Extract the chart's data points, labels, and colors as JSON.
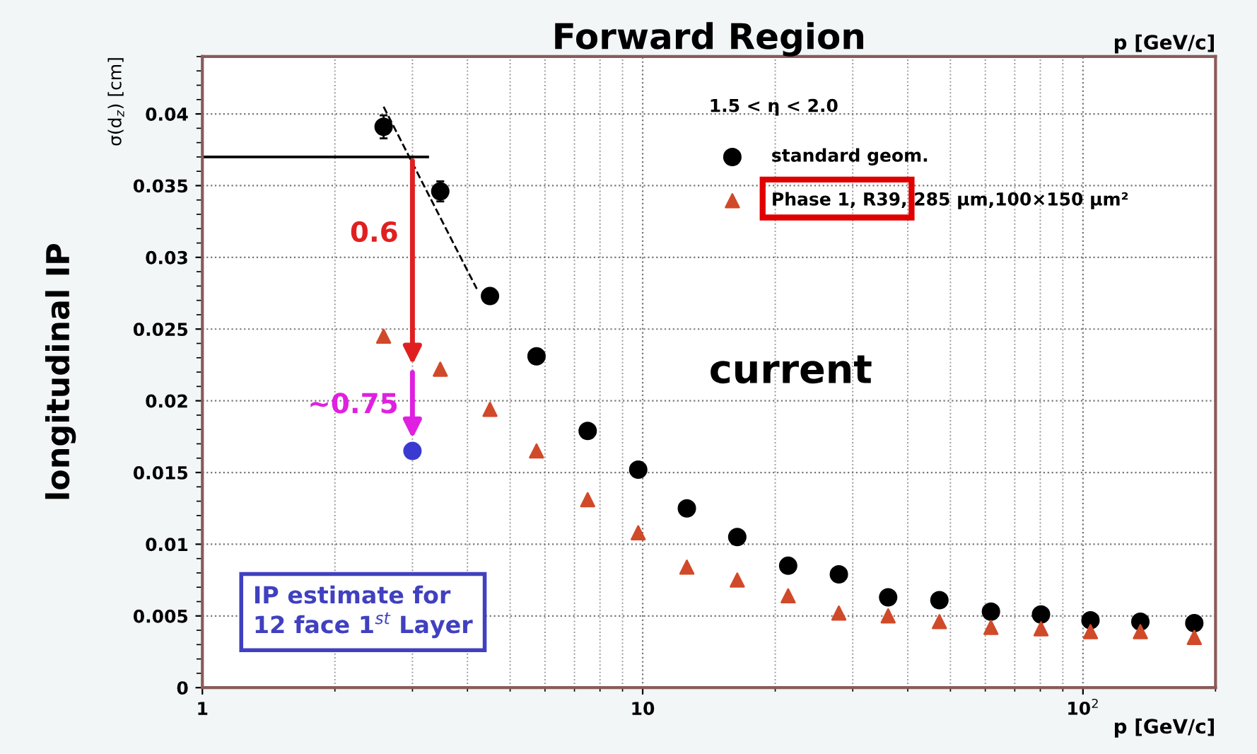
{
  "chart_data": {
    "type": "scatter",
    "title": "Forward Region",
    "xlabel": "p [GeV/c]",
    "ylabel": "σ(d$_{z}$) [cm]",
    "log": "x",
    "xlim": [
      1,
      200
    ],
    "xticks": [
      1,
      10,
      {
        "value": 100,
        "label": "10$^{2}$"
      }
    ],
    "ylim": [
      0,
      0.044
    ],
    "yticks": [
      0,
      0.005,
      0.01,
      0.015,
      0.02,
      0.025,
      0.03,
      0.035,
      0.04
    ],
    "grid": true,
    "legend": "top right",
    "series": [
      {
        "name": "standard geom.",
        "marker": "circle",
        "color": "#000000",
        "x": [
          2.58,
          3.47,
          4.5,
          5.74,
          7.5,
          9.77,
          12.6,
          16.4,
          21.4,
          27.9,
          36.1,
          47.2,
          61.8,
          80.3,
          104,
          135,
          179
        ],
        "values": [
          0.0391,
          0.0346,
          0.0273,
          0.0231,
          0.0179,
          0.0152,
          0.0125,
          0.0105,
          0.0085,
          0.0079,
          0.0063,
          0.0061,
          0.0053,
          0.0051,
          0.0047,
          0.0046,
          0.0045
        ],
        "errors": [
          0.0008,
          0.0007,
          null,
          null,
          null,
          null,
          null,
          null,
          null,
          null,
          null,
          null,
          null,
          null,
          null,
          null,
          null
        ]
      },
      {
        "name": "Phase 1, R39, 285 μm,100×150 μm²",
        "marker": "triangle",
        "color": "#d04a2a",
        "x": [
          2.58,
          3.47,
          4.5,
          5.74,
          7.5,
          9.77,
          12.6,
          16.4,
          21.4,
          27.9,
          36.1,
          47.2,
          61.8,
          80.3,
          104,
          135,
          179
        ],
        "values": [
          0.0245,
          0.0222,
          0.0194,
          0.0165,
          0.0131,
          0.0108,
          0.0084,
          0.0075,
          0.0064,
          0.0052,
          0.005,
          0.0046,
          0.0042,
          0.0041,
          0.0039,
          0.0039,
          0.0035
        ]
      },
      {
        "type": "scatter",
        "marker": "circle",
        "color": "#3a3ad0",
        "x": [
          3.0
        ],
        "values": [
          0.0165
        ]
      },
      {
        "type": "line",
        "line_style": "dashed",
        "marker": "none",
        "color": "#000000",
        "x": [
          2.58,
          4.2
        ],
        "values": [
          0.0405,
          0.0278
        ]
      }
    ],
    "ref_lines": [
      {
        "axis": "y",
        "value": 0.037,
        "color": "#000000"
      }
    ],
    "annotations": [
      "1.5 < η < 2.0",
      "current",
      "IP estimate for\n12 face 1$^{st}$ Layer",
      "longitudinal IP",
      "p [GeV/c]",
      "0.6",
      "~0.75"
    ]
  }
}
